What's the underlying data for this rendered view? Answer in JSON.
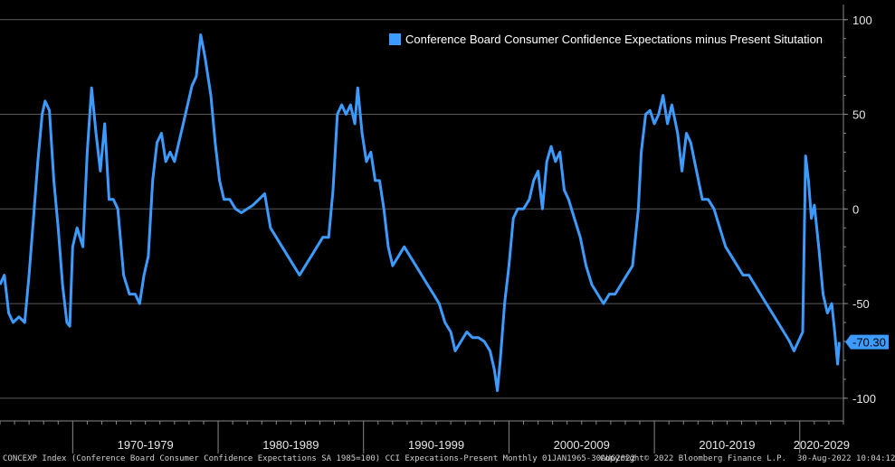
{
  "colors": {
    "background": "#000000",
    "line": "#3d9bff",
    "grid": "#5a5a5a",
    "axis": "#8a8a8a",
    "text": "#e6e6e6"
  },
  "chart_data": {
    "type": "line",
    "series": [
      {
        "name": "Conference Board Consumer Confidence Expectations minus Present Situtation",
        "points": [
          [
            1965.0,
            -40
          ],
          [
            1965.3,
            -35
          ],
          [
            1965.6,
            -55
          ],
          [
            1965.9,
            -60
          ],
          [
            1966.3,
            -57
          ],
          [
            1966.7,
            -60
          ],
          [
            1967.0,
            -35
          ],
          [
            1967.3,
            -5
          ],
          [
            1967.6,
            25
          ],
          [
            1967.9,
            50
          ],
          [
            1968.1,
            57
          ],
          [
            1968.4,
            52
          ],
          [
            1968.7,
            15
          ],
          [
            1969.0,
            -10
          ],
          [
            1969.3,
            -40
          ],
          [
            1969.6,
            -60
          ],
          [
            1969.8,
            -62
          ],
          [
            1970.0,
            -20
          ],
          [
            1970.3,
            -10
          ],
          [
            1970.7,
            -20
          ],
          [
            1971.0,
            30
          ],
          [
            1971.3,
            64
          ],
          [
            1971.6,
            40
          ],
          [
            1971.9,
            20
          ],
          [
            1972.2,
            45
          ],
          [
            1972.5,
            5
          ],
          [
            1972.8,
            5
          ],
          [
            1973.1,
            0
          ],
          [
            1973.5,
            -35
          ],
          [
            1973.9,
            -45
          ],
          [
            1974.3,
            -45
          ],
          [
            1974.6,
            -50
          ],
          [
            1974.9,
            -35
          ],
          [
            1975.2,
            -25
          ],
          [
            1975.5,
            15
          ],
          [
            1975.8,
            35
          ],
          [
            1976.1,
            40
          ],
          [
            1976.4,
            25
          ],
          [
            1976.7,
            30
          ],
          [
            1977.0,
            25
          ],
          [
            1977.3,
            35
          ],
          [
            1977.6,
            45
          ],
          [
            1977.9,
            55
          ],
          [
            1978.2,
            65
          ],
          [
            1978.5,
            70
          ],
          [
            1978.8,
            92
          ],
          [
            1979.1,
            80
          ],
          [
            1979.5,
            60
          ],
          [
            1979.8,
            35
          ],
          [
            1980.1,
            15
          ],
          [
            1980.4,
            5
          ],
          [
            1980.8,
            5
          ],
          [
            1981.2,
            0
          ],
          [
            1981.6,
            -2
          ],
          [
            1982.0,
            0
          ],
          [
            1982.4,
            2
          ],
          [
            1982.8,
            5
          ],
          [
            1983.2,
            8
          ],
          [
            1983.6,
            -10
          ],
          [
            1984.0,
            -15
          ],
          [
            1984.4,
            -20
          ],
          [
            1984.8,
            -25
          ],
          [
            1985.2,
            -30
          ],
          [
            1985.6,
            -35
          ],
          [
            1986.0,
            -30
          ],
          [
            1986.4,
            -25
          ],
          [
            1986.8,
            -20
          ],
          [
            1987.2,
            -15
          ],
          [
            1987.6,
            -15
          ],
          [
            1987.9,
            10
          ],
          [
            1988.2,
            50
          ],
          [
            1988.5,
            55
          ],
          [
            1988.8,
            50
          ],
          [
            1989.1,
            55
          ],
          [
            1989.4,
            45
          ],
          [
            1989.6,
            64
          ],
          [
            1989.9,
            40
          ],
          [
            1990.2,
            25
          ],
          [
            1990.5,
            30
          ],
          [
            1990.8,
            15
          ],
          [
            1991.1,
            15
          ],
          [
            1991.4,
            0
          ],
          [
            1991.7,
            -20
          ],
          [
            1992.0,
            -30
          ],
          [
            1992.4,
            -25
          ],
          [
            1992.8,
            -20
          ],
          [
            1993.2,
            -25
          ],
          [
            1993.6,
            -30
          ],
          [
            1994.0,
            -35
          ],
          [
            1994.4,
            -40
          ],
          [
            1994.8,
            -45
          ],
          [
            1995.2,
            -50
          ],
          [
            1995.6,
            -60
          ],
          [
            1996.0,
            -65
          ],
          [
            1996.3,
            -75
          ],
          [
            1996.7,
            -70
          ],
          [
            1997.1,
            -65
          ],
          [
            1997.5,
            -68
          ],
          [
            1997.9,
            -68
          ],
          [
            1998.3,
            -70
          ],
          [
            1998.7,
            -75
          ],
          [
            1999.0,
            -85
          ],
          [
            1999.2,
            -96
          ],
          [
            1999.4,
            -80
          ],
          [
            1999.7,
            -50
          ],
          [
            2000.0,
            -30
          ],
          [
            2000.3,
            -5
          ],
          [
            2000.6,
            0
          ],
          [
            2001.0,
            0
          ],
          [
            2001.4,
            5
          ],
          [
            2001.7,
            15
          ],
          [
            2002.0,
            20
          ],
          [
            2002.3,
            0
          ],
          [
            2002.6,
            25
          ],
          [
            2002.9,
            33
          ],
          [
            2003.2,
            25
          ],
          [
            2003.5,
            30
          ],
          [
            2003.8,
            10
          ],
          [
            2004.1,
            5
          ],
          [
            2004.5,
            -5
          ],
          [
            2004.9,
            -15
          ],
          [
            2005.3,
            -30
          ],
          [
            2005.7,
            -40
          ],
          [
            2006.1,
            -45
          ],
          [
            2006.5,
            -50
          ],
          [
            2006.9,
            -45
          ],
          [
            2007.3,
            -45
          ],
          [
            2007.7,
            -40
          ],
          [
            2008.1,
            -35
          ],
          [
            2008.5,
            -30
          ],
          [
            2008.9,
            0
          ],
          [
            2009.1,
            30
          ],
          [
            2009.4,
            50
          ],
          [
            2009.7,
            52
          ],
          [
            2010.0,
            45
          ],
          [
            2010.3,
            50
          ],
          [
            2010.6,
            60
          ],
          [
            2010.9,
            45
          ],
          [
            2011.2,
            55
          ],
          [
            2011.6,
            40
          ],
          [
            2011.9,
            20
          ],
          [
            2012.2,
            40
          ],
          [
            2012.5,
            35
          ],
          [
            2012.9,
            20
          ],
          [
            2013.3,
            5
          ],
          [
            2013.7,
            5
          ],
          [
            2014.1,
            0
          ],
          [
            2014.5,
            -10
          ],
          [
            2014.9,
            -20
          ],
          [
            2015.3,
            -25
          ],
          [
            2015.7,
            -30
          ],
          [
            2016.1,
            -35
          ],
          [
            2016.5,
            -35
          ],
          [
            2016.9,
            -40
          ],
          [
            2017.3,
            -45
          ],
          [
            2017.7,
            -50
          ],
          [
            2018.1,
            -55
          ],
          [
            2018.5,
            -60
          ],
          [
            2018.9,
            -65
          ],
          [
            2019.3,
            -70
          ],
          [
            2019.6,
            -75
          ],
          [
            2019.9,
            -70
          ],
          [
            2020.2,
            -65
          ],
          [
            2020.4,
            28
          ],
          [
            2020.6,
            15
          ],
          [
            2020.8,
            -5
          ],
          [
            2021.0,
            2
          ],
          [
            2021.3,
            -20
          ],
          [
            2021.6,
            -45
          ],
          [
            2021.9,
            -55
          ],
          [
            2022.2,
            -50
          ],
          [
            2022.4,
            -65
          ],
          [
            2022.6,
            -82
          ],
          [
            2022.7,
            -72
          ],
          [
            2022.7,
            -70.3
          ]
        ]
      }
    ],
    "last_value_label": "-70.30",
    "y_ticks": [
      "100",
      "50",
      "0",
      "-50",
      "-100"
    ],
    "y_tick_values": [
      100,
      50,
      0,
      -50,
      -100
    ],
    "ylim": [
      -112,
      108
    ],
    "xlim": [
      1965.0,
      2023.0
    ],
    "x_decades": [
      {
        "label": "1970-1979",
        "start": 1970,
        "end": 1980
      },
      {
        "label": "1980-1989",
        "start": 1980,
        "end": 1990
      },
      {
        "label": "1990-1999",
        "start": 1990,
        "end": 2000
      },
      {
        "label": "2000-2009",
        "start": 2000,
        "end": 2010
      },
      {
        "label": "2010-2019",
        "start": 2010,
        "end": 2020
      },
      {
        "label": "2020-2029",
        "start": 2020,
        "end": 2030
      }
    ],
    "grid": true,
    "legend_position": "top-right"
  },
  "footer": {
    "source": "CONCEXP Index (Conference Board Consumer Confidence Expectations SA 1985=100) CCI Expecations-Present  Monthly 01JAN1965-30AUG2022",
    "copyright": "Copyright© 2022 Bloomberg Finance L.P.",
    "timestamp": "30-Aug-2022 10:04:12"
  }
}
